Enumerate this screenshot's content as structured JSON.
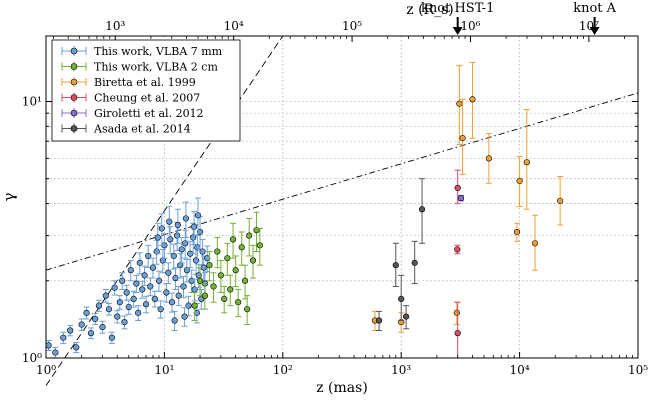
{
  "chart_data": {
    "type": "scatter",
    "xlabel": "z (mas)",
    "ylabel": "γ",
    "top_xlabel": "z (R_s)",
    "xscale": "log",
    "yscale": "log",
    "xlim": [
      1,
      100000
    ],
    "ylim": [
      1,
      18
    ],
    "top_xlim": [
      260,
      26000000
    ],
    "grid": true,
    "legend_position": "top-left",
    "x_ticks": [
      {
        "value": 1,
        "label": "10⁰"
      },
      {
        "value": 10,
        "label": "10¹"
      },
      {
        "value": 100,
        "label": "10²"
      },
      {
        "value": 1000,
        "label": "10³"
      },
      {
        "value": 10000,
        "label": "10⁴"
      },
      {
        "value": 100000,
        "label": "10⁵"
      }
    ],
    "top_x_ticks": [
      {
        "value": 1000,
        "label": "10³"
      },
      {
        "value": 10000,
        "label": "10⁴"
      },
      {
        "value": 100000,
        "label": "10⁵"
      },
      {
        "value": 1000000,
        "label": "10⁶"
      },
      {
        "value": 10000000,
        "label": "10⁷"
      }
    ],
    "y_ticks": [
      {
        "value": 1,
        "label": "10⁰"
      },
      {
        "value": 10,
        "label": "10¹"
      }
    ],
    "annotations": [
      {
        "text": "knot HST-1",
        "x": 3000
      },
      {
        "text": "knot A",
        "x": 43000
      }
    ],
    "reference_lines": [
      {
        "style": "dashed",
        "points": [
          [
            1,
            0.78
          ],
          [
            100,
            18
          ]
        ]
      },
      {
        "style": "dashdot",
        "points": [
          [
            1,
            2.2
          ],
          [
            100000,
            10.8
          ]
        ]
      }
    ],
    "series": [
      {
        "name": "This work, VLBA 7 mm",
        "color": "#6a9fd8",
        "points": [
          [
            1.05,
            1.12,
            0.05,
            0.05
          ],
          [
            1.2,
            1.05,
            0.05,
            0.05
          ],
          [
            1.4,
            1.2,
            0.06,
            0.06
          ],
          [
            1.6,
            1.28,
            0.06,
            0.06
          ],
          [
            1.8,
            1.1,
            0.05,
            0.05
          ],
          [
            2.0,
            1.35,
            0.07,
            0.07
          ],
          [
            2.2,
            1.5,
            0.08,
            0.08
          ],
          [
            2.4,
            1.25,
            0.06,
            0.06
          ],
          [
            2.6,
            1.42,
            0.07,
            0.07
          ],
          [
            2.8,
            1.6,
            0.08,
            0.08
          ],
          [
            3.0,
            1.32,
            0.07,
            0.07
          ],
          [
            3.2,
            1.75,
            0.1,
            0.1
          ],
          [
            3.4,
            1.55,
            0.08,
            0.08
          ],
          [
            3.6,
            1.2,
            0.06,
            0.06
          ],
          [
            3.8,
            1.88,
            0.12,
            0.12
          ],
          [
            4.0,
            1.45,
            0.08,
            0.08
          ],
          [
            4.2,
            1.65,
            0.1,
            0.1
          ],
          [
            4.4,
            2.0,
            0.15,
            0.15
          ],
          [
            4.6,
            1.38,
            0.08,
            0.08
          ],
          [
            4.8,
            1.8,
            0.12,
            0.12
          ],
          [
            5.0,
            1.58,
            0.1,
            0.1
          ],
          [
            5.2,
            2.2,
            0.2,
            0.2
          ],
          [
            5.5,
            1.7,
            0.12,
            0.12
          ],
          [
            5.8,
            1.95,
            0.15,
            0.15
          ],
          [
            6.0,
            1.5,
            0.1,
            0.1
          ],
          [
            6.2,
            2.35,
            0.22,
            0.22
          ],
          [
            6.5,
            1.85,
            0.14,
            0.14
          ],
          [
            6.8,
            2.1,
            0.18,
            0.18
          ],
          [
            7.0,
            1.62,
            0.12,
            0.12
          ],
          [
            7.3,
            2.5,
            0.25,
            0.25
          ],
          [
            7.6,
            1.9,
            0.15,
            0.15
          ],
          [
            8.0,
            2.25,
            0.2,
            0.2
          ],
          [
            8.3,
            1.7,
            0.12,
            0.12
          ],
          [
            8.6,
            2.6,
            0.28,
            0.28
          ],
          [
            9.0,
            2.0,
            0.18,
            0.18
          ],
          [
            9.3,
            1.55,
            0.12,
            0.12
          ],
          [
            9.7,
            2.4,
            0.25,
            0.25
          ],
          [
            10.0,
            2.75,
            0.3,
            0.3
          ],
          [
            10.4,
            1.8,
            0.15,
            0.15
          ],
          [
            10.8,
            2.15,
            0.2,
            0.2
          ],
          [
            11.2,
            2.9,
            0.35,
            0.35
          ],
          [
            11.6,
            1.65,
            0.14,
            0.14
          ],
          [
            12.0,
            2.5,
            0.28,
            0.28
          ],
          [
            12.4,
            2.05,
            0.2,
            0.2
          ],
          [
            12.8,
            3.0,
            0.38,
            0.38
          ],
          [
            13.2,
            1.75,
            0.15,
            0.15
          ],
          [
            13.6,
            2.3,
            0.25,
            0.25
          ],
          [
            14.0,
            2.65,
            0.3,
            0.3
          ],
          [
            14.5,
            1.9,
            0.18,
            0.18
          ],
          [
            15.0,
            2.8,
            0.35,
            0.35
          ],
          [
            15.5,
            2.2,
            0.22,
            0.22
          ],
          [
            16.0,
            1.6,
            0.14,
            0.14
          ],
          [
            16.5,
            2.55,
            0.3,
            0.3
          ],
          [
            17.0,
            2.0,
            0.2,
            0.2
          ],
          [
            17.5,
            2.95,
            0.4,
            0.4
          ],
          [
            18.0,
            1.85,
            0.18,
            0.18
          ],
          [
            18.5,
            2.4,
            0.28,
            0.28
          ],
          [
            19.0,
            2.7,
            0.32,
            0.32
          ],
          [
            19.5,
            2.1,
            0.22,
            0.22
          ],
          [
            20.0,
            3.1,
            0.45,
            0.45
          ],
          [
            20.5,
            1.7,
            0.15,
            0.15
          ],
          [
            21.0,
            2.6,
            0.3,
            0.3
          ],
          [
            21.5,
            2.25,
            0.25,
            0.25
          ],
          [
            22.0,
            1.95,
            0.2,
            0.2
          ],
          [
            23.0,
            2.45,
            0.28,
            0.28
          ],
          [
            9.5,
            3.2,
            0.45,
            0.45
          ],
          [
            11.0,
            3.4,
            0.5,
            0.5
          ],
          [
            13.0,
            3.3,
            0.5,
            0.5
          ],
          [
            15.2,
            3.5,
            0.55,
            0.55
          ],
          [
            17.8,
            3.25,
            0.48,
            0.48
          ],
          [
            19.2,
            3.6,
            0.6,
            0.6
          ],
          [
            8.8,
            2.95,
            0.4,
            0.4
          ],
          [
            14.8,
            1.45,
            0.12,
            0.12
          ],
          [
            12.2,
            1.4,
            0.12,
            0.12
          ],
          [
            18.8,
            1.5,
            0.13,
            0.13
          ]
        ]
      },
      {
        "name": "This work, VLBA 2 cm",
        "color": "#74b234",
        "points": [
          [
            18,
            1.6,
            0.2,
            0.2
          ],
          [
            20,
            2.0,
            0.25,
            0.25
          ],
          [
            22,
            1.75,
            0.2,
            0.2
          ],
          [
            24,
            2.3,
            0.3,
            0.3
          ],
          [
            26,
            1.9,
            0.25,
            0.25
          ],
          [
            28,
            2.6,
            0.35,
            0.35
          ],
          [
            30,
            2.1,
            0.3,
            0.3
          ],
          [
            32,
            1.7,
            0.2,
            0.2
          ],
          [
            34,
            2.45,
            0.35,
            0.35
          ],
          [
            36,
            1.85,
            0.25,
            0.25
          ],
          [
            38,
            2.9,
            0.45,
            0.45
          ],
          [
            40,
            2.2,
            0.3,
            0.3
          ],
          [
            42,
            1.65,
            0.2,
            0.2
          ],
          [
            45,
            2.7,
            0.4,
            0.4
          ],
          [
            48,
            2.0,
            0.3,
            0.3
          ],
          [
            52,
            3.0,
            0.5,
            0.5
          ],
          [
            56,
            2.4,
            0.35,
            0.35
          ],
          [
            60,
            3.15,
            0.55,
            0.55
          ],
          [
            64,
            2.75,
            0.45,
            0.45
          ],
          [
            50,
            1.55,
            0.2,
            0.2
          ]
        ]
      },
      {
        "name": "Biretta et al. 1999",
        "color": "#f0a030",
        "points": [
          [
            600,
            1.4,
            0.12,
            0.12
          ],
          [
            1000,
            1.38,
            0.12,
            0.12
          ],
          [
            2950,
            1.5,
            0.15,
            0.15
          ],
          [
            3100,
            9.8,
            3.0,
            4.0
          ],
          [
            3300,
            7.2,
            2.0,
            3.0
          ],
          [
            4000,
            10.2,
            3.0,
            4.0
          ],
          [
            5500,
            6.0,
            1.2,
            1.5
          ],
          [
            10000,
            4.9,
            1.0,
            1.2
          ],
          [
            9500,
            3.1,
            0.25,
            0.25
          ],
          [
            11500,
            5.8,
            2.0,
            3.5
          ],
          [
            13500,
            2.8,
            0.6,
            0.8
          ],
          [
            22000,
            4.1,
            0.8,
            1.0
          ]
        ]
      },
      {
        "name": "Cheung et al. 2007",
        "color": "#e04a64",
        "points": [
          [
            2980,
            2.65,
            0.1,
            0.1
          ],
          [
            3000,
            4.6,
            0.6,
            0.8
          ],
          [
            3000,
            1.25,
            0.3,
            0.4
          ]
        ]
      },
      {
        "name": "Giroletti et al. 2012",
        "color": "#8a6ccf",
        "points": [
          [
            3200,
            4.2,
            0.1,
            0.1
          ]
        ]
      },
      {
        "name": "Asada et al. 2014",
        "color": "#555555",
        "points": [
          [
            650,
            1.4,
            0.12,
            0.12
          ],
          [
            900,
            2.3,
            0.4,
            0.5
          ],
          [
            1000,
            1.7,
            0.3,
            0.4
          ],
          [
            1100,
            1.45,
            0.15,
            0.15
          ],
          [
            1300,
            2.35,
            0.4,
            0.5
          ],
          [
            1500,
            3.8,
            1.0,
            1.2
          ]
        ]
      }
    ]
  }
}
